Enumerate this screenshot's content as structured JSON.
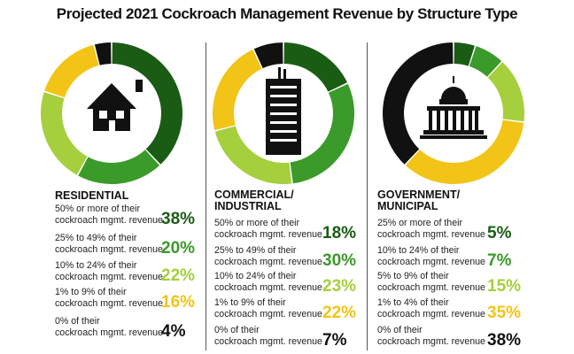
{
  "title": "Projected 2021 Cockroach Management Revenue by Structure Type",
  "colors": {
    "dark_green": "#1a5c14",
    "green": "#3a9a2a",
    "light_green": "#a5cf3c",
    "yellow": "#f2c417",
    "black": "#111111",
    "divider": "#555555"
  },
  "chart_data": [
    {
      "type": "pie",
      "variant": "donut",
      "title": "RESIDENTIAL",
      "icon": "house-icon",
      "categories": [
        "50% or more of their cockroach mgmt. revenue",
        "25% to 49% of their cockroach mgmt. revenue",
        "10% to 24% of their cockroach mgmt. revenue",
        "1% to 9% of their cockroach mgmt. revenue",
        "0% of their cockroach mgmt. revenue"
      ],
      "label_lines": [
        [
          "50% or more of their",
          "cockroach mgmt. revenue"
        ],
        [
          "25% to 49% of their",
          "cockroach mgmt. revenue"
        ],
        [
          "10% to 24% of their",
          "cockroach mgmt. revenue"
        ],
        [
          "1% to 9% of their",
          "cockroach mgmt. revenue"
        ],
        [
          "0% of their",
          "cockroach mgmt. revenue"
        ]
      ],
      "values": [
        38,
        20,
        22,
        16,
        4
      ],
      "display": [
        "38%",
        "20%",
        "22%",
        "16%",
        "4%"
      ],
      "slice_colors": [
        "#1a5c14",
        "#3a9a2a",
        "#a5cf3c",
        "#f2c417",
        "#111111"
      ]
    },
    {
      "type": "pie",
      "variant": "donut",
      "title": "COMMERCIAL/ INDUSTRIAL",
      "title_lines": [
        "COMMERCIAL/",
        "INDUSTRIAL"
      ],
      "icon": "office-building-icon",
      "categories": [
        "50% or more of their cockroach mgmt. revenue",
        "25% to 49% of their cockroach mgmt. revenue",
        "10% to 24% of their cockroach mgmt. revenue",
        "1% to 9% of their cockroach mgmt. revenue",
        "0% of their cockroach mgmt. revenue"
      ],
      "label_lines": [
        [
          "50% or more of their",
          "cockroach mgmt. revenue"
        ],
        [
          "25% to 49% of their",
          "cockroach mgmt. revenue"
        ],
        [
          "10% to 24% of their",
          "cockroach mgmt. revenue"
        ],
        [
          "1% to 9% of their",
          "cockroach mgmt. revenue"
        ],
        [
          "0% of their",
          "cockroach mgmt. revenue"
        ]
      ],
      "values": [
        18,
        30,
        23,
        22,
        7
      ],
      "display": [
        "18%",
        "30%",
        "23%",
        "22%",
        "7%"
      ],
      "slice_colors": [
        "#1a5c14",
        "#3a9a2a",
        "#a5cf3c",
        "#f2c417",
        "#111111"
      ]
    },
    {
      "type": "pie",
      "variant": "donut",
      "title": "GOVERNMENT/ MUNICIPAL",
      "title_lines": [
        "GOVERNMENT/",
        "MUNICIPAL"
      ],
      "icon": "capitol-building-icon",
      "categories": [
        "25% or more of their cockroach mgmt. revenue",
        "10% to 24% of their cockroach mgmt. revenue",
        "5% to 9% of their cockroach mgmt. revenue",
        "1% to 4% of their cockroach mgmt. revenue",
        "0% of their cockroach mgmt. revenue"
      ],
      "label_lines": [
        [
          "25% or more of their",
          "cockroach mgmt. revenue"
        ],
        [
          "10% to 24% of their",
          "cockroach mgmt. revenue"
        ],
        [
          "5% to 9% of their",
          "cockroach mgmt. revenue"
        ],
        [
          "1% to 4% of their",
          "cockroach mgmt. revenue"
        ],
        [
          "0% of their",
          "cockroach mgmt. revenue"
        ]
      ],
      "values": [
        5,
        7,
        15,
        35,
        38
      ],
      "display": [
        "5%",
        "7%",
        "15%",
        "35%",
        "38%"
      ],
      "slice_colors": [
        "#1a5c14",
        "#3a9a2a",
        "#a5cf3c",
        "#f2c417",
        "#111111"
      ]
    }
  ]
}
